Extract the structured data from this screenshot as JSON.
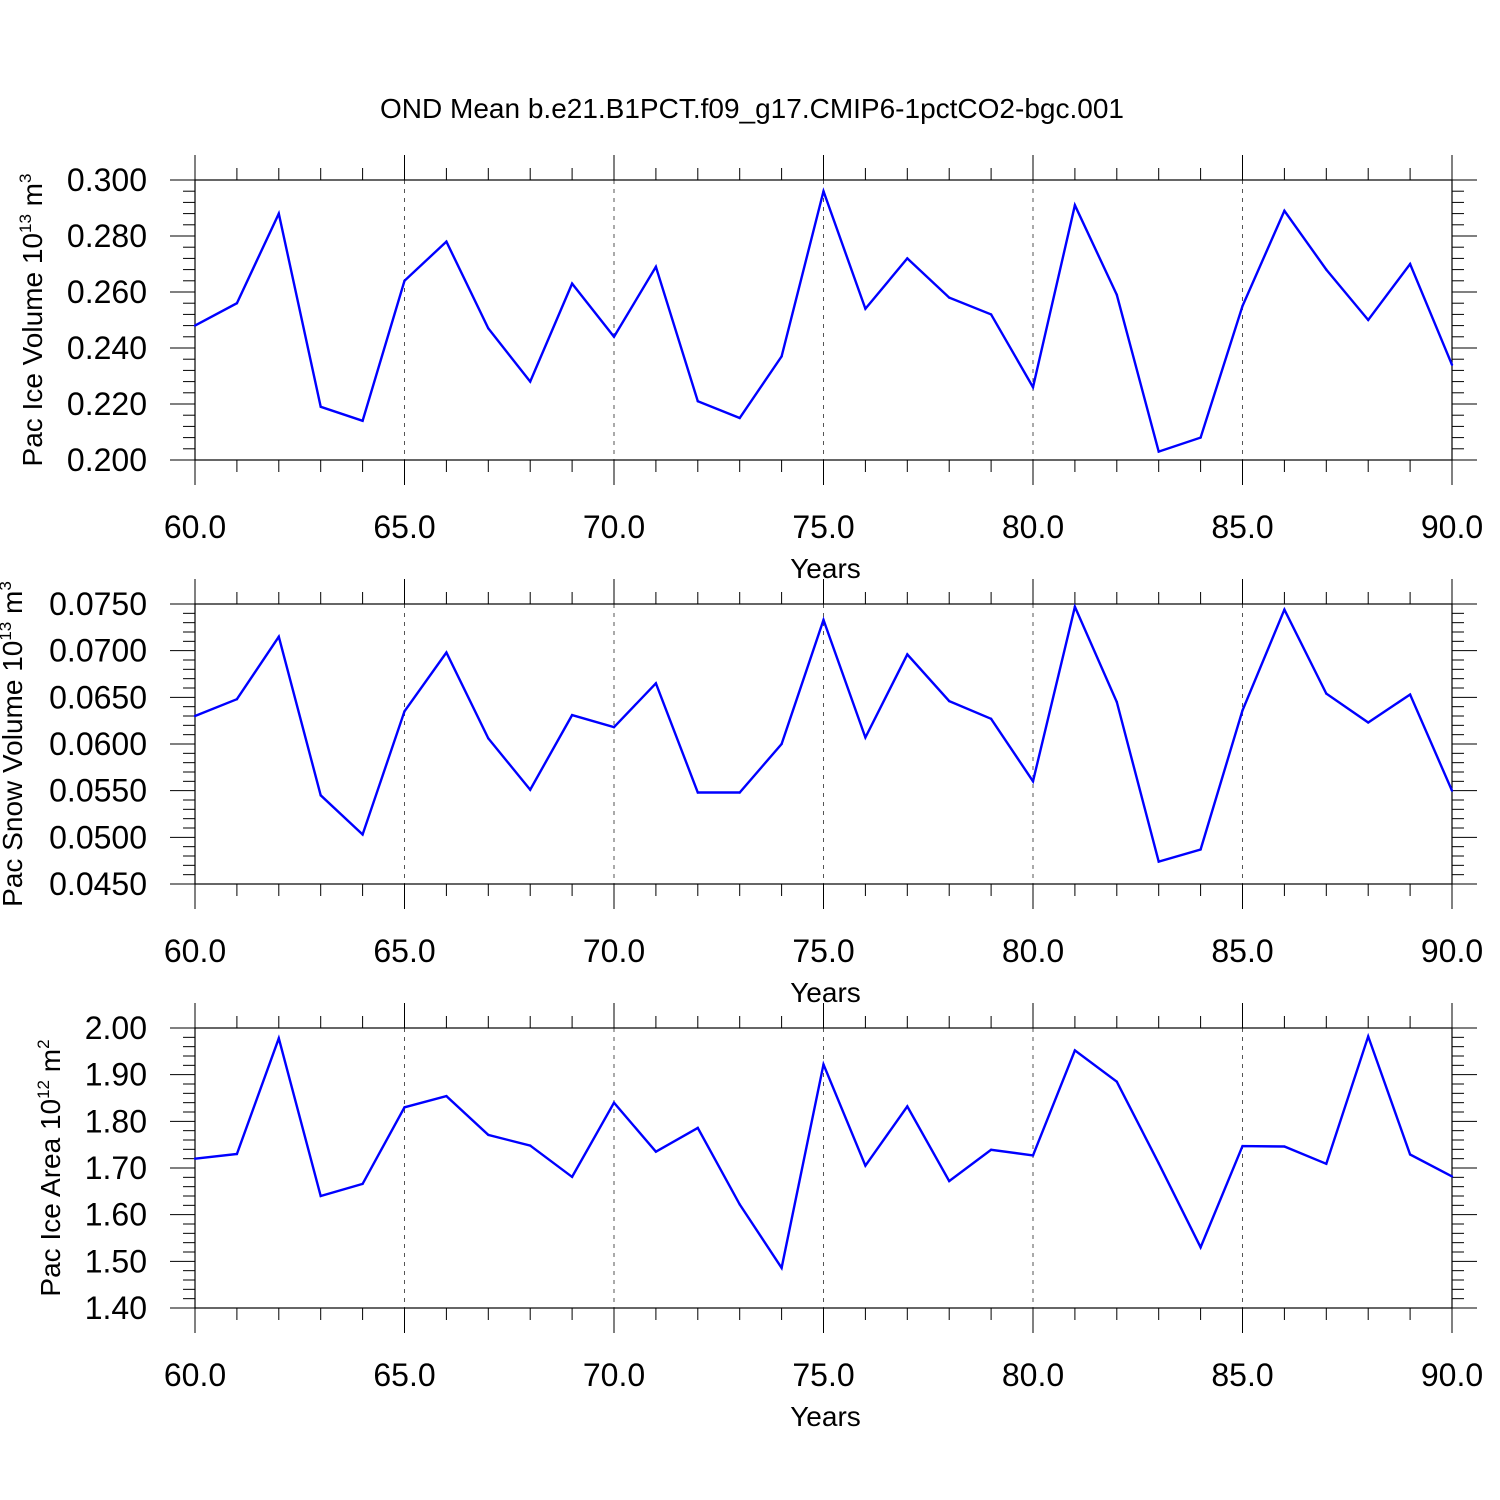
{
  "title": "OND Mean b.e21.B1PCT.f09_g17.CMIP6-1pctCO2-bgc.001",
  "colors": {
    "series": "#0000ff",
    "axes": "#000000",
    "grid": "#555555",
    "background": "#ffffff"
  },
  "chart_data": [
    {
      "type": "line",
      "ylabel": {
        "text": "Pac Ice Volume 10",
        "exp": "13",
        "unit": " m",
        "unit_exp": "3"
      },
      "xlabel": "Years",
      "xlim": [
        60,
        90
      ],
      "ylim": [
        0.2,
        0.3
      ],
      "x_ticks": [
        "60.0",
        "65.0",
        "70.0",
        "75.0",
        "80.0",
        "85.0",
        "90.0"
      ],
      "y_ticks": [
        "0.200",
        "0.220",
        "0.240",
        "0.260",
        "0.280",
        "0.300"
      ],
      "grid": "dashed vertical at major x ticks",
      "x": [
        60,
        61,
        62,
        63,
        64,
        65,
        66,
        67,
        68,
        69,
        70,
        71,
        72,
        73,
        74,
        75,
        76,
        77,
        78,
        79,
        80,
        81,
        82,
        83,
        84,
        85,
        86,
        87,
        88,
        89,
        90
      ],
      "values": [
        0.248,
        0.256,
        0.288,
        0.219,
        0.214,
        0.264,
        0.278,
        0.247,
        0.228,
        0.263,
        0.244,
        0.269,
        0.221,
        0.215,
        0.237,
        0.296,
        0.254,
        0.272,
        0.258,
        0.252,
        0.226,
        0.291,
        0.259,
        0.203,
        0.208,
        0.255,
        0.289,
        0.268,
        0.25,
        0.27,
        0.234
      ]
    },
    {
      "type": "line",
      "ylabel": {
        "text": "Pac Snow Volume 10",
        "exp": "13",
        "unit": " m",
        "unit_exp": "3"
      },
      "xlabel": "Years",
      "xlim": [
        60,
        90
      ],
      "ylim": [
        0.045,
        0.075
      ],
      "x_ticks": [
        "60.0",
        "65.0",
        "70.0",
        "75.0",
        "80.0",
        "85.0",
        "90.0"
      ],
      "y_ticks": [
        "0.0450",
        "0.0500",
        "0.0550",
        "0.0600",
        "0.0650",
        "0.0700",
        "0.0750"
      ],
      "grid": "dashed vertical at major x ticks",
      "x": [
        60,
        61,
        62,
        63,
        64,
        65,
        66,
        67,
        68,
        69,
        70,
        71,
        72,
        73,
        74,
        75,
        76,
        77,
        78,
        79,
        80,
        81,
        82,
        83,
        84,
        85,
        86,
        87,
        88,
        89,
        90
      ],
      "values": [
        0.063,
        0.0648,
        0.0715,
        0.0545,
        0.0503,
        0.0635,
        0.0698,
        0.0606,
        0.0551,
        0.0631,
        0.0618,
        0.0665,
        0.0548,
        0.0548,
        0.06,
        0.0733,
        0.0607,
        0.0696,
        0.0646,
        0.0627,
        0.056,
        0.0747,
        0.0645,
        0.0474,
        0.0487,
        0.0636,
        0.0744,
        0.0654,
        0.0623,
        0.0653,
        0.055
      ]
    },
    {
      "type": "line",
      "ylabel": {
        "text": "Pac Ice Area 10",
        "exp": "12",
        "unit": " m",
        "unit_exp": "2"
      },
      "xlabel": "Years",
      "xlim": [
        60,
        90
      ],
      "ylim": [
        1.4,
        2.0
      ],
      "x_ticks": [
        "60.0",
        "65.0",
        "70.0",
        "75.0",
        "80.0",
        "85.0",
        "90.0"
      ],
      "y_ticks": [
        "1.40",
        "1.50",
        "1.60",
        "1.70",
        "1.80",
        "1.90",
        "2.00"
      ],
      "grid": "dashed vertical at major x ticks",
      "x": [
        60,
        61,
        62,
        63,
        64,
        65,
        66,
        67,
        68,
        69,
        70,
        71,
        72,
        73,
        74,
        75,
        76,
        77,
        78,
        79,
        80,
        81,
        82,
        83,
        84,
        85,
        86,
        87,
        88,
        89,
        90
      ],
      "values": [
        1.72,
        1.73,
        1.978,
        1.64,
        1.666,
        1.83,
        1.854,
        1.771,
        1.748,
        1.681,
        1.84,
        1.735,
        1.786,
        1.622,
        1.486,
        1.922,
        1.705,
        1.832,
        1.672,
        1.739,
        1.727,
        1.952,
        1.885,
        1.71,
        1.53,
        1.747,
        1.746,
        1.709,
        1.982,
        1.729,
        1.682
      ]
    }
  ]
}
